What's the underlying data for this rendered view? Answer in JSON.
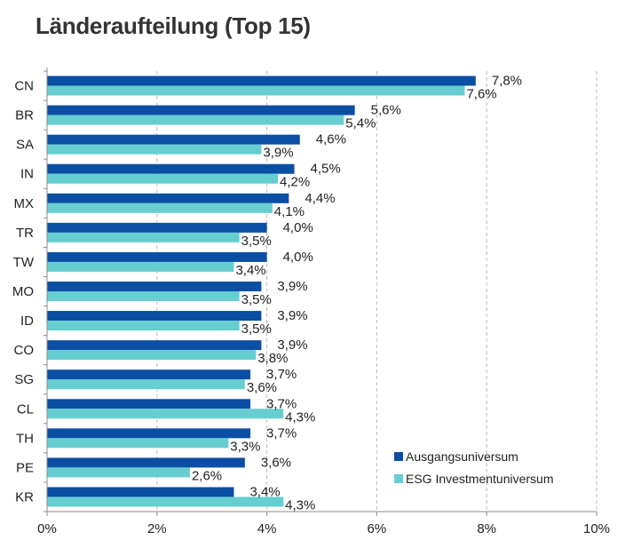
{
  "chart_data": {
    "type": "bar",
    "orientation": "horizontal",
    "title": "Länderaufteilung (Top 15)",
    "xlabel": "",
    "ylabel": "",
    "xlim": [
      0,
      10
    ],
    "x_ticks": [
      0,
      2,
      4,
      6,
      8,
      10
    ],
    "x_tick_labels": [
      "0%",
      "2%",
      "4%",
      "6%",
      "8%",
      "10%"
    ],
    "grid": "vertical dashed",
    "legend_position": "bottom-right",
    "categories": [
      "CN",
      "BR",
      "SA",
      "IN",
      "MX",
      "TR",
      "TW",
      "MO",
      "ID",
      "CO",
      "SG",
      "CL",
      "TH",
      "PE",
      "KR"
    ],
    "series": [
      {
        "name": "Ausgangsuniversum",
        "color": "#0A4FA3",
        "values": [
          7.8,
          5.6,
          4.6,
          4.5,
          4.4,
          4.0,
          4.0,
          3.9,
          3.9,
          3.9,
          3.7,
          3.7,
          3.7,
          3.6,
          3.4
        ],
        "labels": [
          "7,8%",
          "5,6%",
          "4,6%",
          "4,5%",
          "4,4%",
          "4,0%",
          "4,0%",
          "3,9%",
          "3,9%",
          "3,9%",
          "3,7%",
          "3,7%",
          "3,7%",
          "3,6%",
          "3,4%"
        ]
      },
      {
        "name": "ESG Investmentuniversum",
        "color": "#66CED1",
        "values": [
          7.6,
          5.4,
          3.9,
          4.2,
          4.1,
          3.5,
          3.4,
          3.5,
          3.5,
          3.8,
          3.6,
          4.3,
          3.3,
          2.6,
          4.3
        ],
        "labels": [
          "7,6%",
          "5,4%",
          "3,9%",
          "4,2%",
          "4,1%",
          "3,5%",
          "3,4%",
          "3,5%",
          "3,5%",
          "3,8%",
          "3,6%",
          "4,3%",
          "3,3%",
          "2,6%",
          "4,3%"
        ]
      }
    ]
  }
}
